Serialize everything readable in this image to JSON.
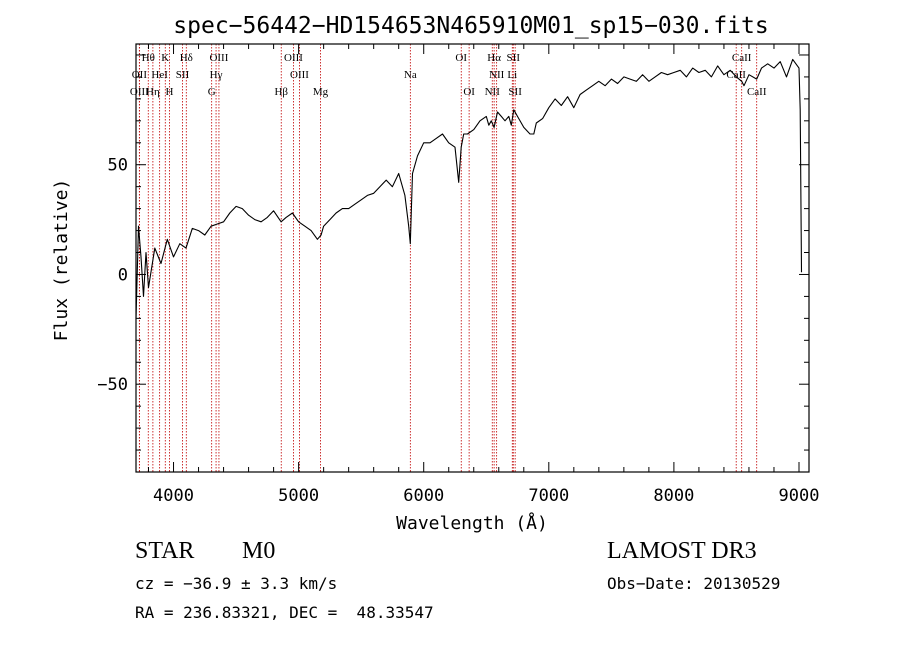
{
  "chart_data": {
    "type": "line",
    "title": "spec−56442−HD154653N465910M01_sp15−030.fits",
    "xlabel": "Wavelength (Å)",
    "ylabel": "Flux (relative)",
    "xlim": [
      3700,
      9080
    ],
    "ylim": [
      -90,
      105
    ],
    "xticks": [
      4000,
      5000,
      6000,
      7000,
      8000,
      9000
    ],
    "xtick_labels": [
      "4000",
      "5000",
      "6000",
      "7000",
      "8000",
      "9000"
    ],
    "yticks": [
      50,
      0,
      -50
    ],
    "ytick_labels": [
      "50",
      "0",
      "−50"
    ],
    "grid": false,
    "series": [
      {
        "name": "spectrum",
        "x": [
          3700,
          3720,
          3740,
          3760,
          3780,
          3800,
          3850,
          3900,
          3950,
          4000,
          4050,
          4100,
          4150,
          4200,
          4250,
          4300,
          4350,
          4400,
          4450,
          4500,
          4550,
          4600,
          4650,
          4700,
          4750,
          4800,
          4860,
          4900,
          4950,
          5000,
          5050,
          5100,
          5150,
          5180,
          5200,
          5250,
          5300,
          5350,
          5400,
          5450,
          5500,
          5550,
          5600,
          5650,
          5700,
          5750,
          5800,
          5850,
          5880,
          5893,
          5910,
          5950,
          6000,
          6050,
          6100,
          6150,
          6200,
          6250,
          6280,
          6300,
          6320,
          6350,
          6400,
          6450,
          6500,
          6520,
          6540,
          6563,
          6590,
          6620,
          6650,
          6680,
          6700,
          6720,
          6750,
          6800,
          6850,
          6880,
          6900,
          6950,
          7000,
          7050,
          7100,
          7150,
          7200,
          7250,
          7300,
          7350,
          7400,
          7450,
          7500,
          7550,
          7600,
          7650,
          7700,
          7750,
          7800,
          7850,
          7900,
          7950,
          8000,
          8050,
          8100,
          8150,
          8200,
          8250,
          8300,
          8350,
          8400,
          8450,
          8500,
          8542,
          8560,
          8600,
          8662,
          8700,
          8750,
          8800,
          8850,
          8900,
          8950,
          9000,
          9010,
          9020
        ],
        "y": [
          -20,
          22,
          8,
          -10,
          10,
          -6,
          12,
          5,
          16,
          8,
          14,
          12,
          21,
          20,
          18,
          22,
          23,
          24,
          28,
          31,
          30,
          27,
          25,
          24,
          26,
          29,
          24,
          26,
          28,
          24,
          22,
          20,
          16,
          18,
          22,
          25,
          28,
          30,
          30,
          32,
          34,
          36,
          37,
          40,
          43,
          40,
          46,
          36,
          22,
          14,
          46,
          54,
          60,
          60,
          62,
          64,
          60,
          58,
          42,
          58,
          64,
          64,
          66,
          70,
          72,
          68,
          70,
          67,
          74,
          72,
          70,
          72,
          68,
          75,
          72,
          67,
          64,
          64,
          69,
          71,
          76,
          80,
          77,
          81,
          76,
          82,
          84,
          86,
          88,
          86,
          89,
          87,
          90,
          89,
          88,
          91,
          88,
          90,
          92,
          91,
          92,
          93,
          90,
          94,
          92,
          93,
          90,
          95,
          91,
          93,
          90,
          88,
          86,
          91,
          89,
          94,
          96,
          94,
          97,
          90,
          98,
          94,
          75,
          1
        ]
      }
    ],
    "lines": [
      {
        "name": "Hθ",
        "wl": 3798,
        "row": 0
      },
      {
        "name": "K",
        "wl": 3934,
        "row": 0
      },
      {
        "name": "Hδ",
        "wl": 4102,
        "row": 0
      },
      {
        "name": "OIII",
        "wl": 4363,
        "row": 0
      },
      {
        "name": "OIII",
        "wl": 4959,
        "row": 0
      },
      {
        "name": "OI",
        "wl": 6300,
        "row": 0
      },
      {
        "name": "Hα",
        "wl": 6563,
        "row": 0
      },
      {
        "name": "SII",
        "wl": 6716,
        "row": 0
      },
      {
        "name": "CaII",
        "wl": 8542,
        "row": 0
      },
      {
        "name": "OII",
        "wl": 3727,
        "row": 1
      },
      {
        "name": "HeI",
        "wl": 3889,
        "row": 1
      },
      {
        "name": "SII",
        "wl": 4072,
        "row": 1
      },
      {
        "name": "Hγ",
        "wl": 4340,
        "row": 1
      },
      {
        "name": "OIII",
        "wl": 5007,
        "row": 1
      },
      {
        "name": "Na",
        "wl": 5893,
        "row": 1
      },
      {
        "name": "NII",
        "wl": 6583,
        "row": 1
      },
      {
        "name": "Li",
        "wl": 6708,
        "row": 1
      },
      {
        "name": "CaII",
        "wl": 8498,
        "row": 1
      },
      {
        "name": "OIII",
        "wl": 3727,
        "row": 2
      },
      {
        "name": "Hη",
        "wl": 3835,
        "row": 2
      },
      {
        "name": "H",
        "wl": 3968,
        "row": 2
      },
      {
        "name": "G",
        "wl": 4305,
        "row": 2
      },
      {
        "name": "Hβ",
        "wl": 4861,
        "row": 2
      },
      {
        "name": "Mg",
        "wl": 5175,
        "row": 2
      },
      {
        "name": "OI",
        "wl": 6363,
        "row": 2
      },
      {
        "name": "NII",
        "wl": 6548,
        "row": 2
      },
      {
        "name": "SII",
        "wl": 6731,
        "row": 2
      },
      {
        "name": "CaII",
        "wl": 8662,
        "row": 2
      }
    ],
    "line_color": "#c00000"
  },
  "info": {
    "object_class": "STAR",
    "subclass": "M0",
    "survey": "LAMOST DR3",
    "cz": "cz = −36.9 ± 3.3 km/s",
    "obs_date": "Obs−Date: 20130529",
    "coords": "RA = 236.83321, DEC =  48.33547"
  }
}
